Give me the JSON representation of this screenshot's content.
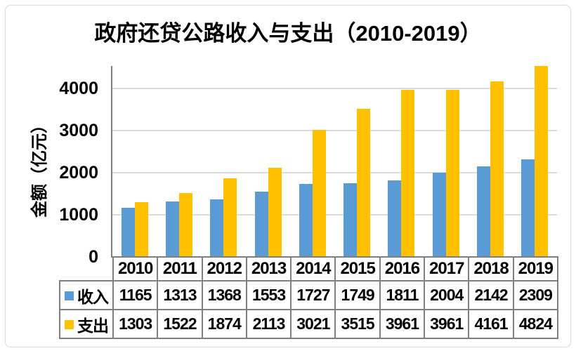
{
  "frame": {
    "border_color": "#d9d9d9"
  },
  "axis_colors": {
    "axis_line": "#7f7f7f",
    "gridline": "#dcdcdc",
    "table_border": "#7f7f7f"
  },
  "chart_data": {
    "type": "bar",
    "title": "政府还贷公路收入与支出（2010-2019）",
    "xlabel": "",
    "ylabel": "金额（亿元）",
    "categories": [
      "2010",
      "2011",
      "2012",
      "2013",
      "2014",
      "2015",
      "2016",
      "2017",
      "2018",
      "2019"
    ],
    "series": [
      {
        "id": "income",
        "name": "收入",
        "color": "#5B9BD5",
        "values": [
          1165,
          1313,
          1368,
          1553,
          1727,
          1749,
          1811,
          2004,
          2142,
          2309
        ]
      },
      {
        "id": "expense",
        "name": "支出",
        "color": "#FFC000",
        "values": [
          1303,
          1522,
          1874,
          2113,
          3021,
          3515,
          3961,
          3961,
          4161,
          4824
        ]
      }
    ],
    "yticks": [
      0,
      1000,
      2000,
      3000,
      4000
    ],
    "ylim": [
      0,
      4533
    ],
    "grid": true,
    "legend_position": "data-table-left"
  }
}
